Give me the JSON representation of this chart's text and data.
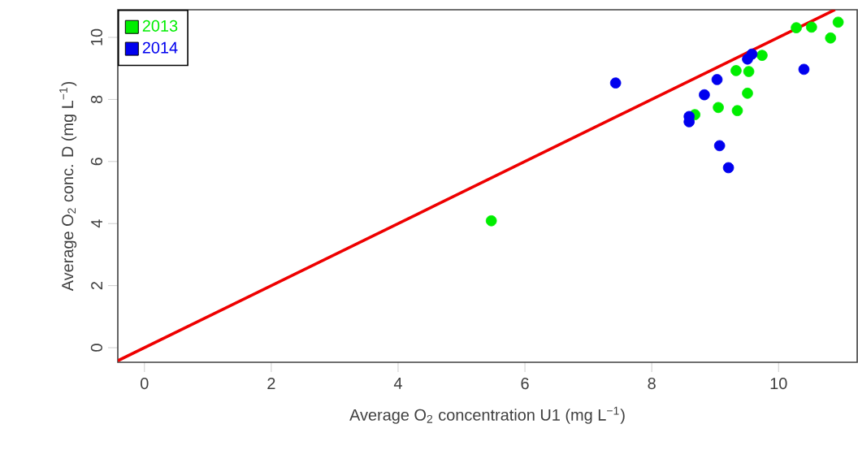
{
  "chart_data": {
    "type": "scatter",
    "xlabel": "Average O$_{2}$ concentration U1 (mg L$^{−1}$)",
    "ylabel": "Average O$_{2}$ conc. D (mg L$^{−1}$)",
    "xlim": [
      -0.42,
      11.24
    ],
    "ylim": [
      -0.47,
      10.89
    ],
    "xticks": [
      0,
      2,
      4,
      6,
      8,
      10
    ],
    "yticks": [
      0,
      2,
      4,
      6,
      8,
      10
    ],
    "legend": "top left",
    "series": [
      {
        "name": "2013",
        "marker": "circle",
        "color": "#00ee00",
        "x": [
          5.47,
          8.68,
          9.05,
          9.35,
          9.51,
          9.33,
          9.53,
          9.74,
          10.28,
          10.52,
          10.82,
          10.94
        ],
        "values": [
          4.09,
          7.51,
          7.74,
          7.64,
          8.2,
          8.93,
          8.9,
          9.42,
          10.31,
          10.33,
          9.98,
          10.49
        ]
      },
      {
        "name": "2014",
        "marker": "circle",
        "color": "#0000ee",
        "x": [
          7.43,
          8.59,
          8.59,
          8.83,
          9.03,
          9.07,
          9.21,
          9.51,
          9.58,
          10.4
        ],
        "values": [
          8.53,
          7.45,
          7.28,
          8.15,
          8.64,
          6.51,
          5.8,
          9.3,
          9.46,
          8.97
        ]
      },
      {
        "type": "line",
        "marker": "none",
        "color": "#ee0000",
        "x": [
          -0.42,
          10.89
        ],
        "values": [
          -0.42,
          10.89
        ]
      }
    ]
  }
}
